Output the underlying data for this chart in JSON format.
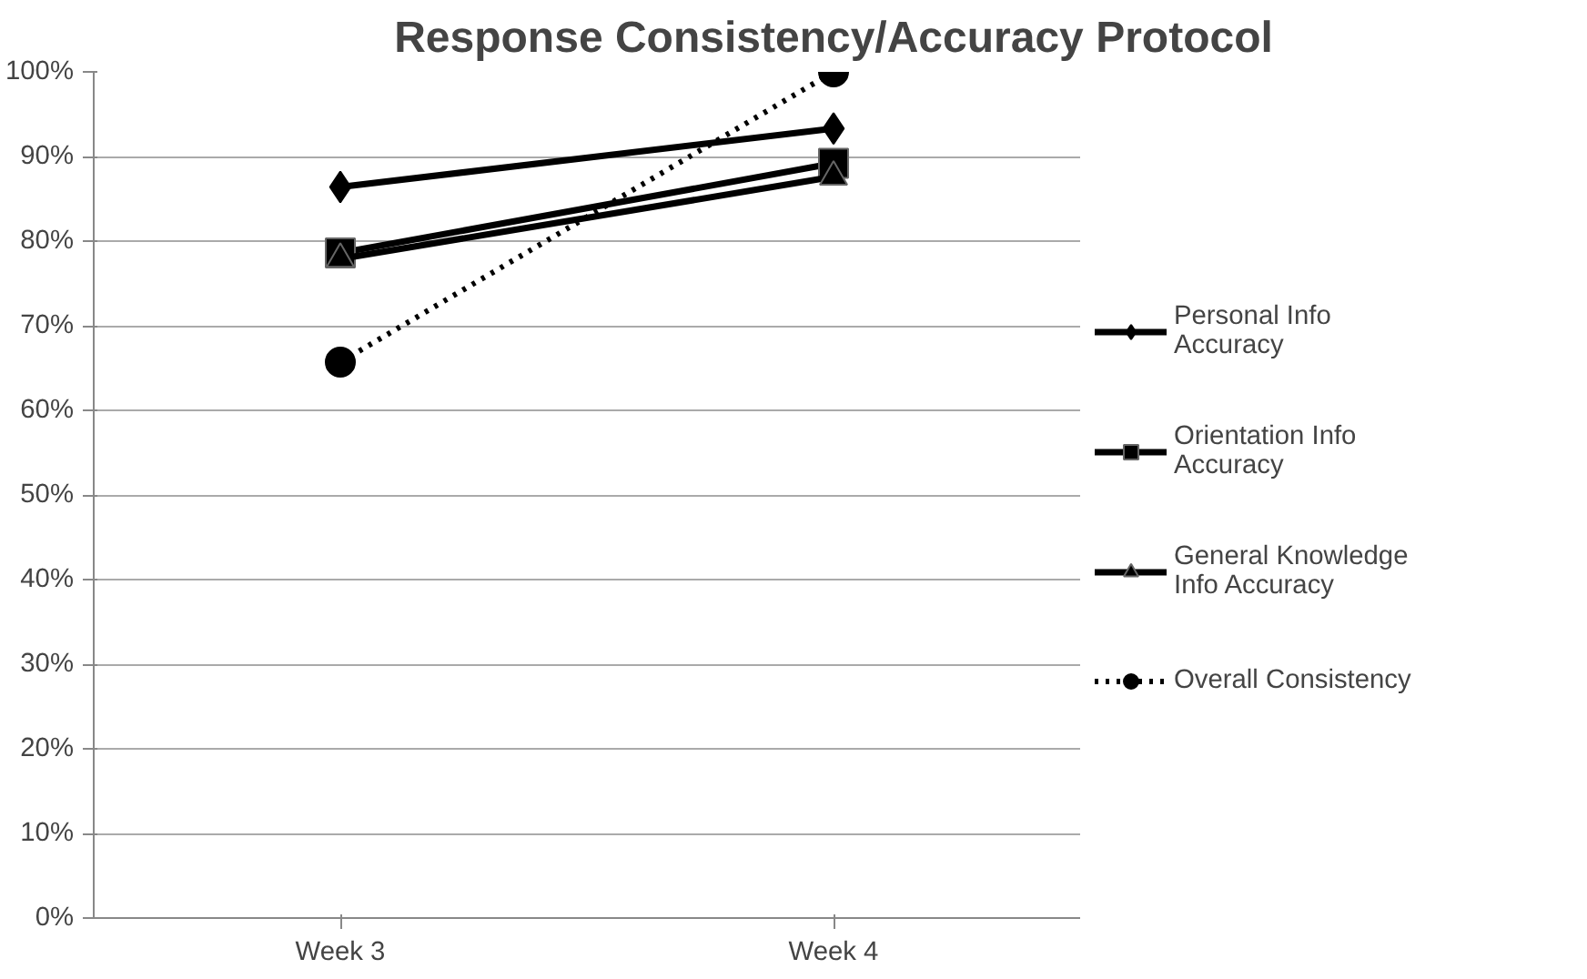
{
  "chart_data": {
    "type": "line",
    "title": "Response Consistency/Accuracy Protocol",
    "categories": [
      "Week 3",
      "Week 4"
    ],
    "series": [
      {
        "name": "Personal Info Accuracy",
        "color": "#000000",
        "marker": "diamond",
        "line_style": "solid",
        "values": [
          86.4,
          93.3
        ]
      },
      {
        "name": "Orientation Info Accuracy",
        "color": "#000000",
        "marker": "square",
        "line_style": "solid",
        "values": [
          78.6,
          89.2
        ]
      },
      {
        "name": "General Knowledge Info Accuracy",
        "color": "#000000",
        "marker": "triangle",
        "line_style": "solid",
        "values": [
          77.9,
          87.6
        ]
      },
      {
        "name": "Overall Consistency",
        "color": "#000000",
        "marker": "circle",
        "line_style": "dotted",
        "values": [
          65.7,
          100
        ]
      }
    ],
    "ylim": [
      0,
      100
    ],
    "yticks": [
      {
        "value": 0,
        "label": "0%"
      },
      {
        "value": 10,
        "label": "10%"
      },
      {
        "value": 20,
        "label": "20%"
      },
      {
        "value": 30,
        "label": "30%"
      },
      {
        "value": 40,
        "label": "40%"
      },
      {
        "value": 50,
        "label": "50%"
      },
      {
        "value": 60,
        "label": "60%"
      },
      {
        "value": 70,
        "label": "70%"
      },
      {
        "value": 80,
        "label": "80%"
      },
      {
        "value": 90,
        "label": "90%"
      },
      {
        "value": 100,
        "label": "100%"
      }
    ],
    "grid": "y",
    "legend": "right"
  }
}
